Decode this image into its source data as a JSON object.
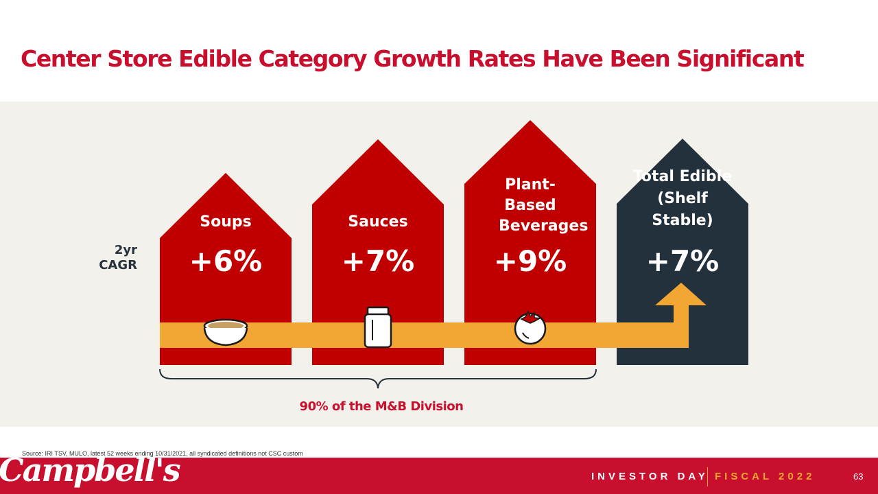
{
  "title": "Center Store Edible Category Growth Rates Have Been Significant",
  "metric_label": "2yr CAGR",
  "categories": [
    {
      "name": "Soups",
      "value": "+6%",
      "icon": "soup-bowl-icon",
      "color": "#c00000"
    },
    {
      "name": "Sauces",
      "value": "+7%",
      "icon": "jar-icon",
      "color": "#c00000"
    },
    {
      "name": "Plant-Based Beverages",
      "value": "+9%",
      "icon": "tomato-icon",
      "color": "#c00000"
    },
    {
      "name": "Total Edible (Shelf Stable)",
      "value": "+7%",
      "icon": "up-arrow-icon",
      "color": "#22313c"
    }
  ],
  "brace_label": "90% of the M&B Division",
  "source": "Source: IRI TSV, MULO, latest 52 weeks ending 10/31/2021, all syndicated definitions not CSC custom",
  "footer": {
    "logo": "Campbell's",
    "event": "INVESTOR DAY",
    "fiscal": "FISCAL 2022",
    "page_number": "63"
  },
  "colors": {
    "brand_red": "#c8102e",
    "house_red": "#c00000",
    "navy": "#22313c",
    "arrow_orange": "#f2a634",
    "panel": "#f3f1ec"
  }
}
